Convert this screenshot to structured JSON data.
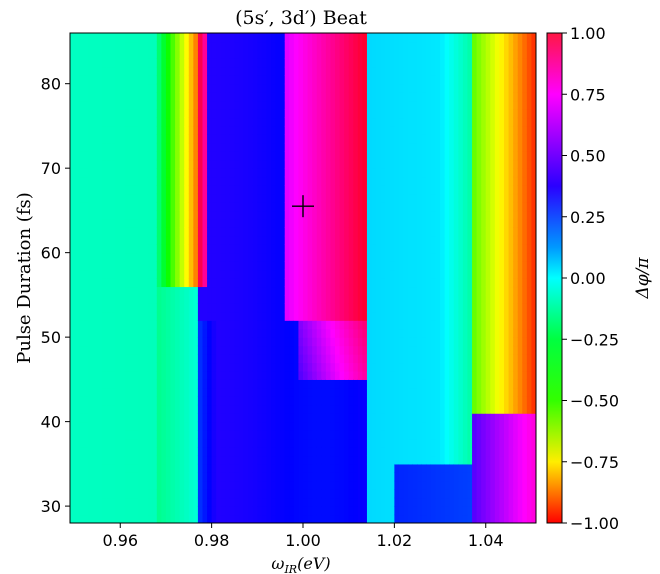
{
  "chart_data": {
    "type": "heatmap",
    "title": "(5s′, 3d′) Beat",
    "xlabel": "ω_IR(eV)",
    "xlabel_main": "ω",
    "xlabel_sub": "IR",
    "xlabel_tail": "(eV)",
    "ylabel": "Pulse Duration (fs)",
    "colorbar_label": "Δφ/π",
    "xlim": [
      0.949,
      1.051
    ],
    "ylim": [
      28,
      86
    ],
    "x_ticks": [
      0.96,
      0.98,
      1.0,
      1.02,
      1.04
    ],
    "x_tick_labels": [
      "0.96",
      "0.98",
      "1.00",
      "1.02",
      "1.04"
    ],
    "y_ticks": [
      30,
      40,
      50,
      60,
      70,
      80
    ],
    "y_tick_labels": [
      "30",
      "40",
      "50",
      "60",
      "70",
      "80"
    ],
    "colorbar_range": [
      -1,
      1
    ],
    "colorbar_ticks": [
      1.0,
      0.75,
      0.5,
      0.25,
      0.0,
      -0.25,
      -0.5,
      -0.75,
      -1.0
    ],
    "colorbar_tick_labels": [
      "1.00",
      "0.75",
      "0.50",
      "0.25",
      "0.00",
      "−0.25",
      "−0.50",
      "−0.75",
      "−1.00"
    ],
    "colormap": "hsv",
    "marker": {
      "symbol": "plus",
      "x": 1.0,
      "y": 65.5
    },
    "regions": [
      {
        "x_range": [
          0.949,
          0.968
        ],
        "y_range": [
          28,
          86
        ],
        "value": -0.1
      },
      {
        "x_range": [
          0.968,
          0.976
        ],
        "y_range": [
          56,
          86
        ],
        "value": -0.4
      },
      {
        "x_range": [
          0.976,
          0.978
        ],
        "y_range": [
          56,
          86
        ],
        "value": -0.85
      },
      {
        "x_range": [
          0.978,
          0.992
        ],
        "y_range": [
          28,
          86
        ],
        "value": 0.4
      },
      {
        "x_range": [
          1.0,
          1.013
        ],
        "y_range": [
          50,
          86
        ],
        "value": 0.85
      },
      {
        "x_range": [
          1.014,
          1.036
        ],
        "y_range": [
          28,
          86
        ],
        "value": 0.05
      },
      {
        "x_range": [
          1.038,
          1.051
        ],
        "y_range": [
          42,
          86
        ],
        "value": -0.75
      },
      {
        "x_range": [
          1.038,
          1.051
        ],
        "y_range": [
          28,
          41
        ],
        "value": 0.6
      }
    ]
  }
}
